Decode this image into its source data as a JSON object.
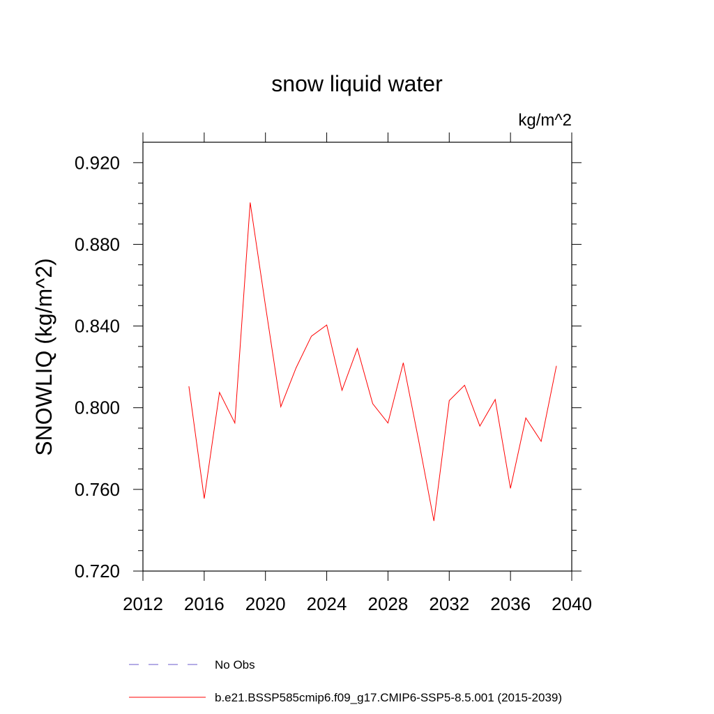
{
  "chart_data": {
    "type": "line",
    "title": "snow liquid water",
    "units": "kg/m^2",
    "ylabel": "SNOWLIQ  (kg/m^2)",
    "xlabel": "",
    "xlim": [
      2012,
      2040
    ],
    "ylim": [
      0.72,
      0.93
    ],
    "xticks": [
      2012,
      2016,
      2020,
      2024,
      2028,
      2032,
      2036,
      2040
    ],
    "xtick_labels": [
      "2012",
      "2016",
      "2020",
      "2024",
      "2028",
      "2032",
      "2036",
      "2040"
    ],
    "yticks": [
      0.72,
      0.76,
      0.8,
      0.84,
      0.88,
      0.92
    ],
    "ytick_labels": [
      "0.720",
      "0.760",
      "0.800",
      "0.840",
      "0.880",
      "0.920"
    ],
    "series": [
      {
        "name": "b.e21.BSSP585cmip6.f09_g17.CMIP6-SSP5-8.5.001 (2015-2039)",
        "color": "#ff0000",
        "style": "solid",
        "x": [
          2015,
          2016,
          2017,
          2018,
          2019,
          2020,
          2021,
          2022,
          2023,
          2024,
          2025,
          2026,
          2027,
          2028,
          2029,
          2030,
          2031,
          2032,
          2033,
          2034,
          2035,
          2036,
          2037,
          2038,
          2039
        ],
        "values": [
          0.8105,
          0.7555,
          0.8075,
          0.7925,
          0.9005,
          0.85,
          0.8005,
          0.8195,
          0.835,
          0.8405,
          0.8085,
          0.829,
          0.802,
          0.7925,
          0.822,
          0.784,
          0.7445,
          0.8035,
          0.811,
          0.791,
          0.804,
          0.7605,
          0.795,
          0.7835,
          0.8205
        ]
      }
    ],
    "legend": [
      {
        "label": "No Obs",
        "color": "#6a5acd",
        "style": "dashed"
      },
      {
        "label": "b.e21.BSSP585cmip6.f09_g17.CMIP6-SSP5-8.5.001 (2015-2039)",
        "color": "#ff0000",
        "style": "solid"
      }
    ],
    "legend_position": "bottom",
    "grid": false
  }
}
